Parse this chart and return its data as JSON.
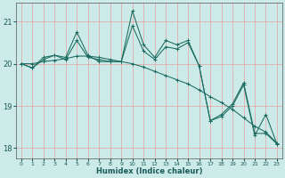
{
  "xlabel": "Humidex (Indice chaleur)",
  "bg_color": "#cceae8",
  "grid_color_v": "#e8a0a0",
  "grid_color_h": "#e8a0a0",
  "line_color": "#1a6b60",
  "xlim": [
    -0.5,
    23.5
  ],
  "ylim": [
    17.75,
    21.45
  ],
  "yticks": [
    18,
    19,
    20,
    21
  ],
  "xticks": [
    0,
    1,
    2,
    3,
    4,
    5,
    6,
    7,
    8,
    9,
    10,
    11,
    12,
    13,
    14,
    15,
    16,
    17,
    18,
    19,
    20,
    21,
    22,
    23
  ],
  "series1": [
    20.0,
    19.9,
    20.15,
    20.2,
    20.15,
    20.75,
    20.2,
    20.05,
    20.05,
    20.05,
    21.25,
    20.45,
    20.15,
    20.55,
    20.45,
    20.55,
    19.95,
    18.65,
    18.8,
    19.05,
    19.55,
    18.35,
    18.35,
    18.1
  ],
  "series2": [
    20.0,
    19.9,
    20.1,
    20.2,
    20.1,
    20.55,
    20.15,
    20.1,
    20.05,
    20.05,
    20.9,
    20.3,
    20.1,
    20.4,
    20.35,
    20.5,
    19.95,
    18.65,
    18.75,
    19.0,
    19.5,
    18.3,
    18.8,
    18.1
  ],
  "series3": [
    20.0,
    20.0,
    20.05,
    20.08,
    20.12,
    20.18,
    20.18,
    20.15,
    20.1,
    20.05,
    20.0,
    19.92,
    19.82,
    19.72,
    19.62,
    19.52,
    19.38,
    19.22,
    19.08,
    18.92,
    18.72,
    18.52,
    18.38,
    18.12
  ]
}
